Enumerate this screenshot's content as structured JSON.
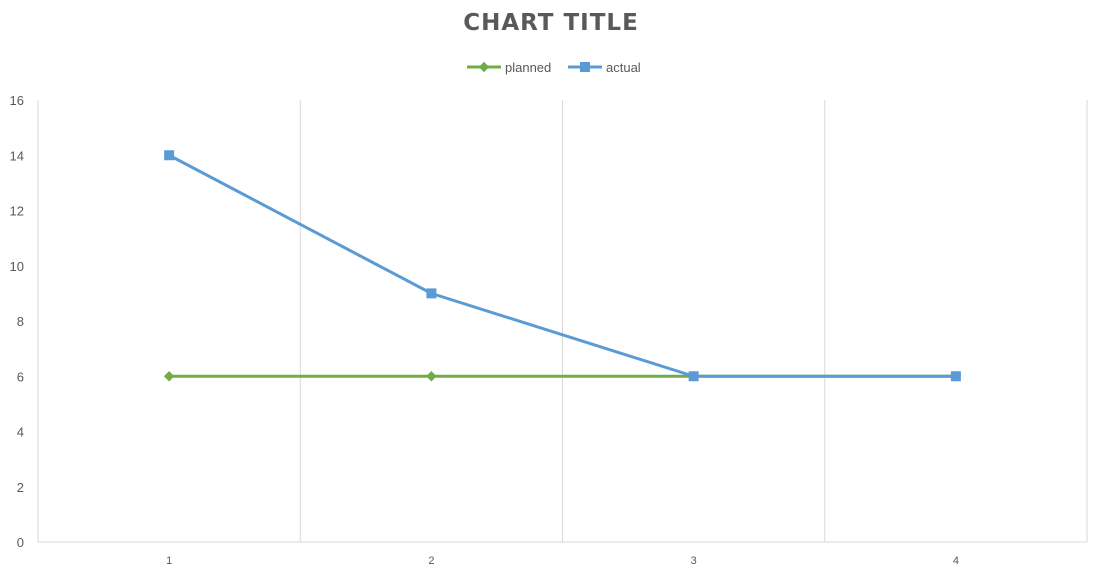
{
  "chart_data": {
    "type": "line",
    "title": "CHART TITLE",
    "xlabel": "",
    "ylabel": "",
    "categories": [
      "1",
      "2",
      "3",
      "4"
    ],
    "series": [
      {
        "name": "planned",
        "values": [
          6,
          6,
          6,
          6
        ],
        "color": "#70AD47",
        "marker": "diamond"
      },
      {
        "name": "actual",
        "values": [
          14,
          9,
          6,
          6
        ],
        "color": "#5B9BD5",
        "marker": "square"
      }
    ],
    "ylim": [
      0,
      16
    ],
    "yticks": [
      0,
      2,
      4,
      6,
      8,
      10,
      12,
      14,
      16
    ],
    "legend_position": "top",
    "grid": "vertical",
    "gridline_color": "#D9D9D9",
    "tick_label_color": "#595959"
  }
}
